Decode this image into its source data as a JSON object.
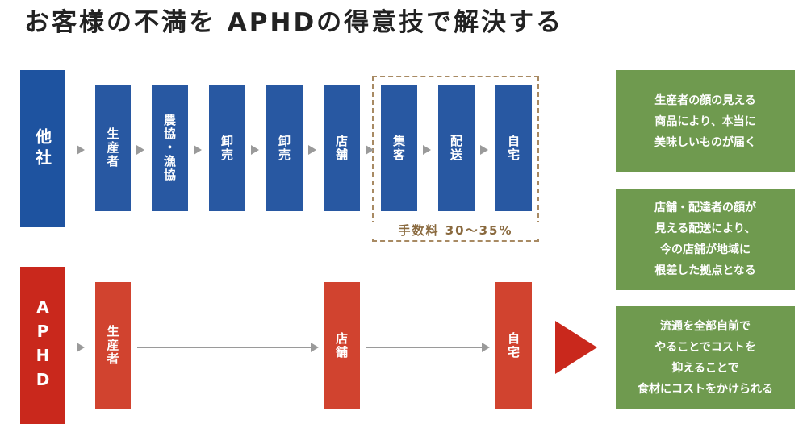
{
  "title": "お客様の不満を APHDの得意技で解決する",
  "other": {
    "label": "他社",
    "steps": [
      "生産者",
      "農協・漁協",
      "卸売",
      "卸売",
      "店舗",
      "集客",
      "配送",
      "自宅"
    ],
    "fee": "手数料 30〜35%"
  },
  "aphd": {
    "label": "APHD",
    "steps": [
      "生産者",
      "店舗",
      "自宅"
    ]
  },
  "benefits": [
    [
      "生産者の顔の見える",
      "商品により、本当に",
      "美味しいものが届く"
    ],
    [
      "店舗・配達者の顔が",
      "見える配送により、",
      "今の店舗が地域に",
      "根差した拠点となる"
    ],
    [
      "流通を全部自前で",
      "やることでコストを",
      "抑えることで",
      "食材にコストをかけられる"
    ]
  ],
  "colors": {
    "other_primary": "#1e53a0",
    "other_step": "#2858a2",
    "aphd_primary": "#c9281c",
    "aphd_step": "#d1432f",
    "benefit_bg": "#6f9a4f",
    "fee_border": "#a88a63"
  }
}
